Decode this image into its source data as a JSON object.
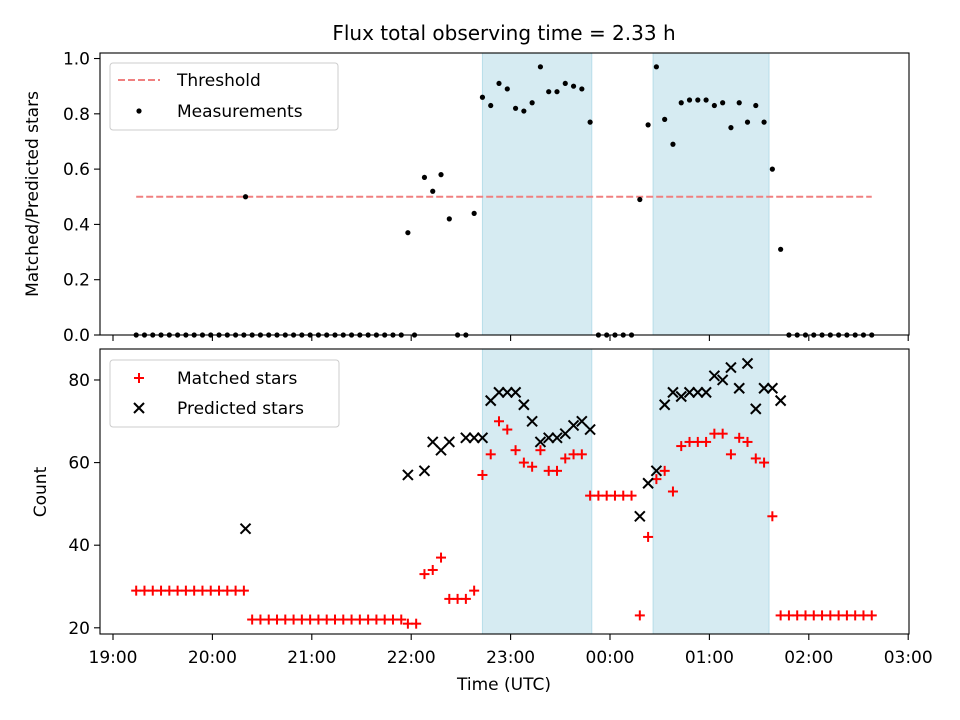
{
  "chart_data": [
    {
      "type": "scatter",
      "title": "Flux total observing time = 2.33 h",
      "xlabel": "",
      "ylabel": "Matched/Predicted stars",
      "ylim": [
        0,
        1.02
      ],
      "yticks": [
        0.0,
        0.2,
        0.4,
        0.6,
        0.8,
        1.0
      ],
      "ytick_labels": [
        "0.0",
        "0.2",
        "0.4",
        "0.6",
        "0.8",
        "1.0"
      ],
      "legend": {
        "placement": "top-left",
        "threshold_label": "Threshold",
        "measurements_label": "Measurements"
      },
      "threshold": {
        "value": 0.5,
        "x_range": [
          "19:14",
          "02:38"
        ],
        "color": "#f08080"
      },
      "series": [
        {
          "name": "Measurements",
          "color": "#000000",
          "points": [
            [
              "19:14",
              0
            ],
            [
              "19:19",
              0
            ],
            [
              "19:24",
              0
            ],
            [
              "19:29",
              0
            ],
            [
              "19:34",
              0
            ],
            [
              "19:39",
              0
            ],
            [
              "19:44",
              0
            ],
            [
              "19:49",
              0
            ],
            [
              "19:54",
              0
            ],
            [
              "19:59",
              0
            ],
            [
              "20:04",
              0
            ],
            [
              "20:09",
              0
            ],
            [
              "20:14",
              0
            ],
            [
              "20:19",
              0
            ],
            [
              "20:20",
              0.5
            ],
            [
              "20:24",
              0
            ],
            [
              "20:29",
              0
            ],
            [
              "20:34",
              0
            ],
            [
              "20:39",
              0
            ],
            [
              "20:44",
              0
            ],
            [
              "20:49",
              0
            ],
            [
              "20:54",
              0
            ],
            [
              "20:59",
              0
            ],
            [
              "21:04",
              0
            ],
            [
              "21:09",
              0
            ],
            [
              "21:14",
              0
            ],
            [
              "21:19",
              0
            ],
            [
              "21:24",
              0
            ],
            [
              "21:29",
              0
            ],
            [
              "21:34",
              0
            ],
            [
              "21:39",
              0
            ],
            [
              "21:44",
              0
            ],
            [
              "21:49",
              0
            ],
            [
              "21:54",
              0
            ],
            [
              "21:58",
              0.37
            ],
            [
              "22:02",
              0
            ],
            [
              "22:08",
              0.57
            ],
            [
              "22:13",
              0.52
            ],
            [
              "22:18",
              0.58
            ],
            [
              "22:23",
              0.42
            ],
            [
              "22:28",
              0
            ],
            [
              "22:33",
              0
            ],
            [
              "22:38",
              0.44
            ],
            [
              "22:43",
              0.86
            ],
            [
              "22:48",
              0.83
            ],
            [
              "22:53",
              0.91
            ],
            [
              "22:58",
              0.89
            ],
            [
              "23:03",
              0.82
            ],
            [
              "23:08",
              0.81
            ],
            [
              "23:13",
              0.84
            ],
            [
              "23:18",
              0.97
            ],
            [
              "23:23",
              0.88
            ],
            [
              "23:28",
              0.88
            ],
            [
              "23:33",
              0.91
            ],
            [
              "23:38",
              0.9
            ],
            [
              "23:43",
              0.89
            ],
            [
              "23:48",
              0.77
            ],
            [
              "23:53",
              0
            ],
            [
              "23:58",
              0
            ],
            [
              "00:03",
              0
            ],
            [
              "00:08",
              0
            ],
            [
              "00:13",
              0
            ],
            [
              "00:18",
              0.49
            ],
            [
              "00:23",
              0.76
            ],
            [
              "00:28",
              0.97
            ],
            [
              "00:33",
              0.78
            ],
            [
              "00:38",
              0.69
            ],
            [
              "00:43",
              0.84
            ],
            [
              "00:48",
              0.85
            ],
            [
              "00:53",
              0.85
            ],
            [
              "00:58",
              0.85
            ],
            [
              "01:03",
              0.83
            ],
            [
              "01:08",
              0.84
            ],
            [
              "01:13",
              0.75
            ],
            [
              "01:18",
              0.84
            ],
            [
              "01:23",
              0.77
            ],
            [
              "01:28",
              0.83
            ],
            [
              "01:33",
              0.77
            ],
            [
              "01:38",
              0.6
            ],
            [
              "01:43",
              0.31
            ],
            [
              "01:48",
              0
            ],
            [
              "01:53",
              0
            ],
            [
              "01:58",
              0
            ],
            [
              "02:03",
              0
            ],
            [
              "02:08",
              0
            ],
            [
              "02:13",
              0
            ],
            [
              "02:18",
              0
            ],
            [
              "02:23",
              0
            ],
            [
              "02:28",
              0
            ],
            [
              "02:33",
              0
            ],
            [
              "02:38",
              0
            ]
          ]
        }
      ],
      "shaded_regions": [
        [
          "22:43",
          "23:49"
        ],
        [
          "00:26",
          "01:36"
        ]
      ],
      "shade_color": "#add8e6"
    },
    {
      "type": "scatter",
      "title": "",
      "xlabel": "Time (UTC)",
      "ylabel": "Count",
      "ylim": [
        18.5,
        87.5
      ],
      "yticks": [
        20,
        40,
        60,
        80
      ],
      "ytick_labels": [
        "20",
        "40",
        "60",
        "80"
      ],
      "x_range": [
        "19:00",
        "03:00"
      ],
      "xticks": [
        "19:00",
        "20:00",
        "21:00",
        "22:00",
        "23:00",
        "00:00",
        "01:00",
        "02:00",
        "03:00"
      ],
      "xtick_labels": [
        "19:00",
        "20:00",
        "21:00",
        "22:00",
        "23:00",
        "00:00",
        "01:00",
        "02:00",
        "03:00"
      ],
      "legend": {
        "placement": "top-left"
      },
      "series": [
        {
          "name": "Matched stars",
          "marker": "plus",
          "color": "#ff0000",
          "points": [
            [
              "19:14",
              29
            ],
            [
              "19:19",
              29
            ],
            [
              "19:24",
              29
            ],
            [
              "19:29",
              29
            ],
            [
              "19:34",
              29
            ],
            [
              "19:39",
              29
            ],
            [
              "19:44",
              29
            ],
            [
              "19:49",
              29
            ],
            [
              "19:54",
              29
            ],
            [
              "19:59",
              29
            ],
            [
              "20:04",
              29
            ],
            [
              "20:09",
              29
            ],
            [
              "20:14",
              29
            ],
            [
              "20:19",
              29
            ],
            [
              "20:24",
              22
            ],
            [
              "20:29",
              22
            ],
            [
              "20:34",
              22
            ],
            [
              "20:39",
              22
            ],
            [
              "20:44",
              22
            ],
            [
              "20:49",
              22
            ],
            [
              "20:54",
              22
            ],
            [
              "20:59",
              22
            ],
            [
              "21:04",
              22
            ],
            [
              "21:09",
              22
            ],
            [
              "21:14",
              22
            ],
            [
              "21:19",
              22
            ],
            [
              "21:24",
              22
            ],
            [
              "21:29",
              22
            ],
            [
              "21:34",
              22
            ],
            [
              "21:39",
              22
            ],
            [
              "21:44",
              22
            ],
            [
              "21:49",
              22
            ],
            [
              "21:54",
              22
            ],
            [
              "21:58",
              21
            ],
            [
              "22:03",
              21
            ],
            [
              "22:08",
              33
            ],
            [
              "22:13",
              34
            ],
            [
              "22:18",
              37
            ],
            [
              "22:23",
              27
            ],
            [
              "22:28",
              27
            ],
            [
              "22:33",
              27
            ],
            [
              "22:38",
              29
            ],
            [
              "22:43",
              57
            ],
            [
              "22:48",
              62
            ],
            [
              "22:53",
              70
            ],
            [
              "22:58",
              68
            ],
            [
              "23:03",
              63
            ],
            [
              "23:08",
              60
            ],
            [
              "23:13",
              59
            ],
            [
              "23:18",
              63
            ],
            [
              "23:23",
              58
            ],
            [
              "23:28",
              58
            ],
            [
              "23:33",
              61
            ],
            [
              "23:38",
              62
            ],
            [
              "23:43",
              62
            ],
            [
              "23:48",
              52
            ],
            [
              "23:53",
              52
            ],
            [
              "23:58",
              52
            ],
            [
              "00:03",
              52
            ],
            [
              "00:08",
              52
            ],
            [
              "00:13",
              52
            ],
            [
              "00:18",
              23
            ],
            [
              "00:23",
              42
            ],
            [
              "00:28",
              56
            ],
            [
              "00:33",
              58
            ],
            [
              "00:38",
              53
            ],
            [
              "00:43",
              64
            ],
            [
              "00:48",
              65
            ],
            [
              "00:53",
              65
            ],
            [
              "00:58",
              65
            ],
            [
              "01:03",
              67
            ],
            [
              "01:08",
              67
            ],
            [
              "01:13",
              62
            ],
            [
              "01:18",
              66
            ],
            [
              "01:23",
              65
            ],
            [
              "01:28",
              61
            ],
            [
              "01:33",
              60
            ],
            [
              "01:38",
              47
            ],
            [
              "01:43",
              23
            ],
            [
              "01:48",
              23
            ],
            [
              "01:53",
              23
            ],
            [
              "01:58",
              23
            ],
            [
              "02:03",
              23
            ],
            [
              "02:08",
              23
            ],
            [
              "02:13",
              23
            ],
            [
              "02:18",
              23
            ],
            [
              "02:23",
              23
            ],
            [
              "02:28",
              23
            ],
            [
              "02:33",
              23
            ],
            [
              "02:38",
              23
            ]
          ]
        },
        {
          "name": "Predicted stars",
          "marker": "x",
          "color": "#000000",
          "points": [
            [
              "20:20",
              44
            ],
            [
              "21:58",
              57
            ],
            [
              "22:08",
              58
            ],
            [
              "22:13",
              65
            ],
            [
              "22:18",
              63
            ],
            [
              "22:23",
              65
            ],
            [
              "22:33",
              66
            ],
            [
              "22:38",
              66
            ],
            [
              "22:43",
              66
            ],
            [
              "22:48",
              75
            ],
            [
              "22:53",
              77
            ],
            [
              "22:58",
              77
            ],
            [
              "23:03",
              77
            ],
            [
              "23:08",
              74
            ],
            [
              "23:13",
              70
            ],
            [
              "23:18",
              65
            ],
            [
              "23:23",
              66
            ],
            [
              "23:28",
              66
            ],
            [
              "23:33",
              67
            ],
            [
              "23:38",
              69
            ],
            [
              "23:43",
              70
            ],
            [
              "23:48",
              68
            ],
            [
              "00:18",
              47
            ],
            [
              "00:23",
              55
            ],
            [
              "00:28",
              58
            ],
            [
              "00:33",
              74
            ],
            [
              "00:38",
              77
            ],
            [
              "00:43",
              76
            ],
            [
              "00:48",
              77
            ],
            [
              "00:53",
              77
            ],
            [
              "00:58",
              77
            ],
            [
              "01:03",
              81
            ],
            [
              "01:08",
              80
            ],
            [
              "01:13",
              83
            ],
            [
              "01:18",
              78
            ],
            [
              "01:23",
              84
            ],
            [
              "01:28",
              73
            ],
            [
              "01:33",
              78
            ],
            [
              "01:38",
              78
            ],
            [
              "01:43",
              75
            ]
          ]
        }
      ],
      "shaded_regions": [
        [
          "22:43",
          "23:49"
        ],
        [
          "00:26",
          "01:36"
        ]
      ],
      "shade_color": "#add8e6"
    }
  ]
}
